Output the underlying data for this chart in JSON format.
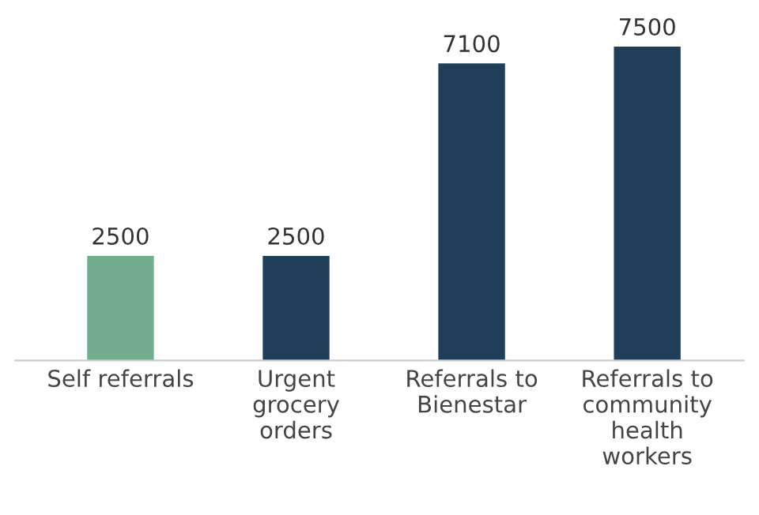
{
  "chart_data": {
    "type": "bar",
    "categories": [
      "Self referrals",
      "Urgent\ngrocery\norders",
      "Referrals to\nBienestar",
      "Referrals to\ncommunity\nhealth\nworkers"
    ],
    "values": [
      2500,
      2500,
      7100,
      7500
    ],
    "colors": [
      "#72ad8e",
      "#1f3e5a",
      "#1f3e5a",
      "#1f3e5a"
    ],
    "data_labels": true,
    "grid": false,
    "legend": false
  }
}
